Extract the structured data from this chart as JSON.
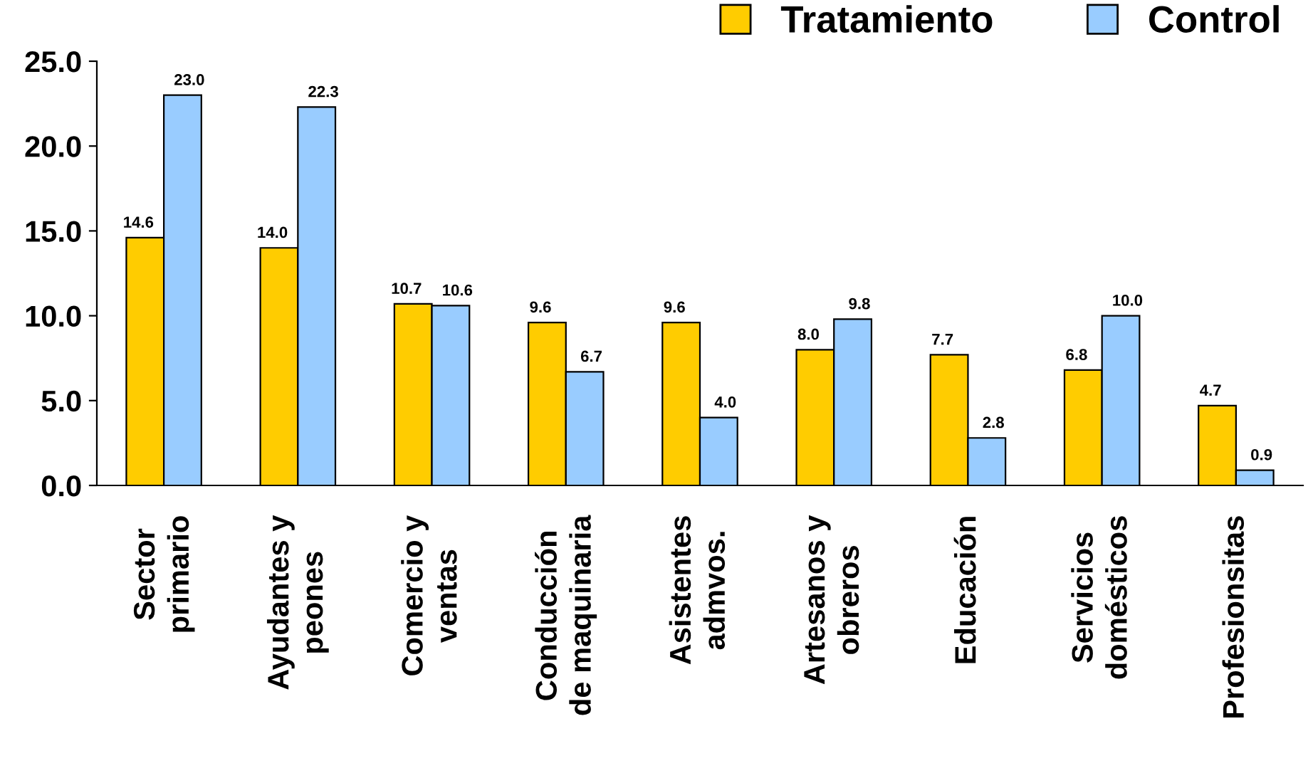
{
  "chart_data": {
    "type": "bar",
    "categories": [
      "Sector\nprimario",
      "Ayudantes y\npeones",
      "Comercio y\nventas",
      "Conducción\nde maquinaria",
      "Asistentes\nadmvos.",
      "Artesanos y\nobreros",
      "Educación",
      "Servicios\ndomésticos",
      "Profesionsitas"
    ],
    "series": [
      {
        "name": "Tratamiento",
        "color": "#ffcc00",
        "values": [
          14.6,
          14.0,
          10.7,
          9.6,
          9.6,
          8.0,
          7.7,
          6.8,
          4.7
        ],
        "value_labels": [
          "14.6",
          "14.0",
          "10.7",
          "9.6",
          "9.6",
          "8.0",
          "7.7",
          "6.8",
          "4.7"
        ]
      },
      {
        "name": "Control",
        "color": "#99ccff",
        "values": [
          23.0,
          22.3,
          10.6,
          6.7,
          4.0,
          9.8,
          2.8,
          10.0,
          0.9
        ],
        "value_labels": [
          "23.0",
          "22.3",
          "10.6",
          "6.7",
          "4.0",
          "9.8",
          "2.8",
          "10.0",
          "0.9"
        ]
      }
    ],
    "ylim": [
      0,
      25
    ],
    "yticks": [
      {
        "value": 0,
        "label": "0.0"
      },
      {
        "value": 5,
        "label": "5.0"
      },
      {
        "value": 10,
        "label": "10.0"
      },
      {
        "value": 15,
        "label": "15.0"
      },
      {
        "value": 20,
        "label": "20.0"
      },
      {
        "value": 25,
        "label": "25.0"
      }
    ],
    "grid": false,
    "legend": "top right"
  }
}
